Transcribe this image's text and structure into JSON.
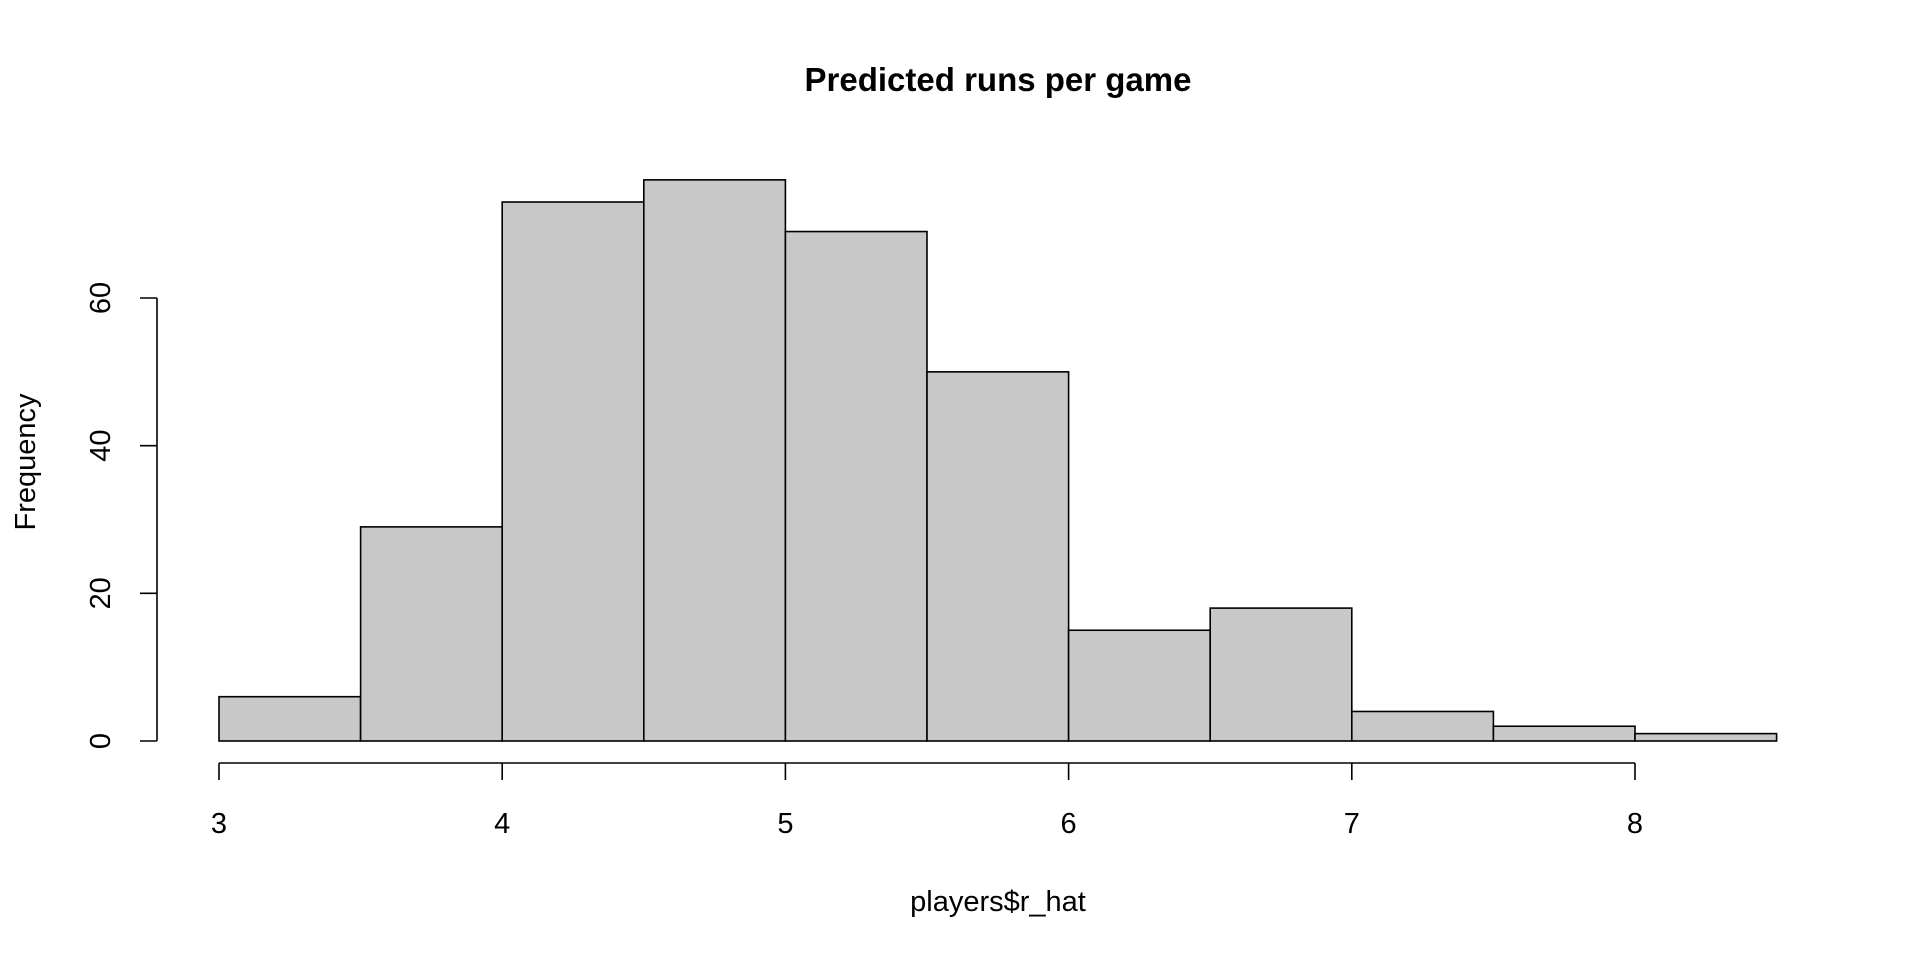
{
  "chart_data": {
    "type": "bar",
    "title": "Predicted runs per game",
    "xlabel": "players$r_hat",
    "ylabel": "Frequency",
    "bin_edges": [
      3,
      3.5,
      4,
      4.5,
      5,
      5.5,
      6,
      6.5,
      7,
      7.5,
      8,
      8.5
    ],
    "values": [
      6,
      29,
      73,
      76,
      69,
      50,
      15,
      18,
      4,
      2,
      1
    ],
    "xticks": [
      "3",
      "4",
      "5",
      "6",
      "7",
      "8"
    ],
    "yticks": [
      "0",
      "20",
      "40",
      "60"
    ],
    "xlim": [
      3,
      8.5
    ],
    "ylim": [
      0,
      76
    ],
    "grid": false,
    "bar_fill": "#c8c8c8",
    "bar_stroke": "#000000"
  }
}
